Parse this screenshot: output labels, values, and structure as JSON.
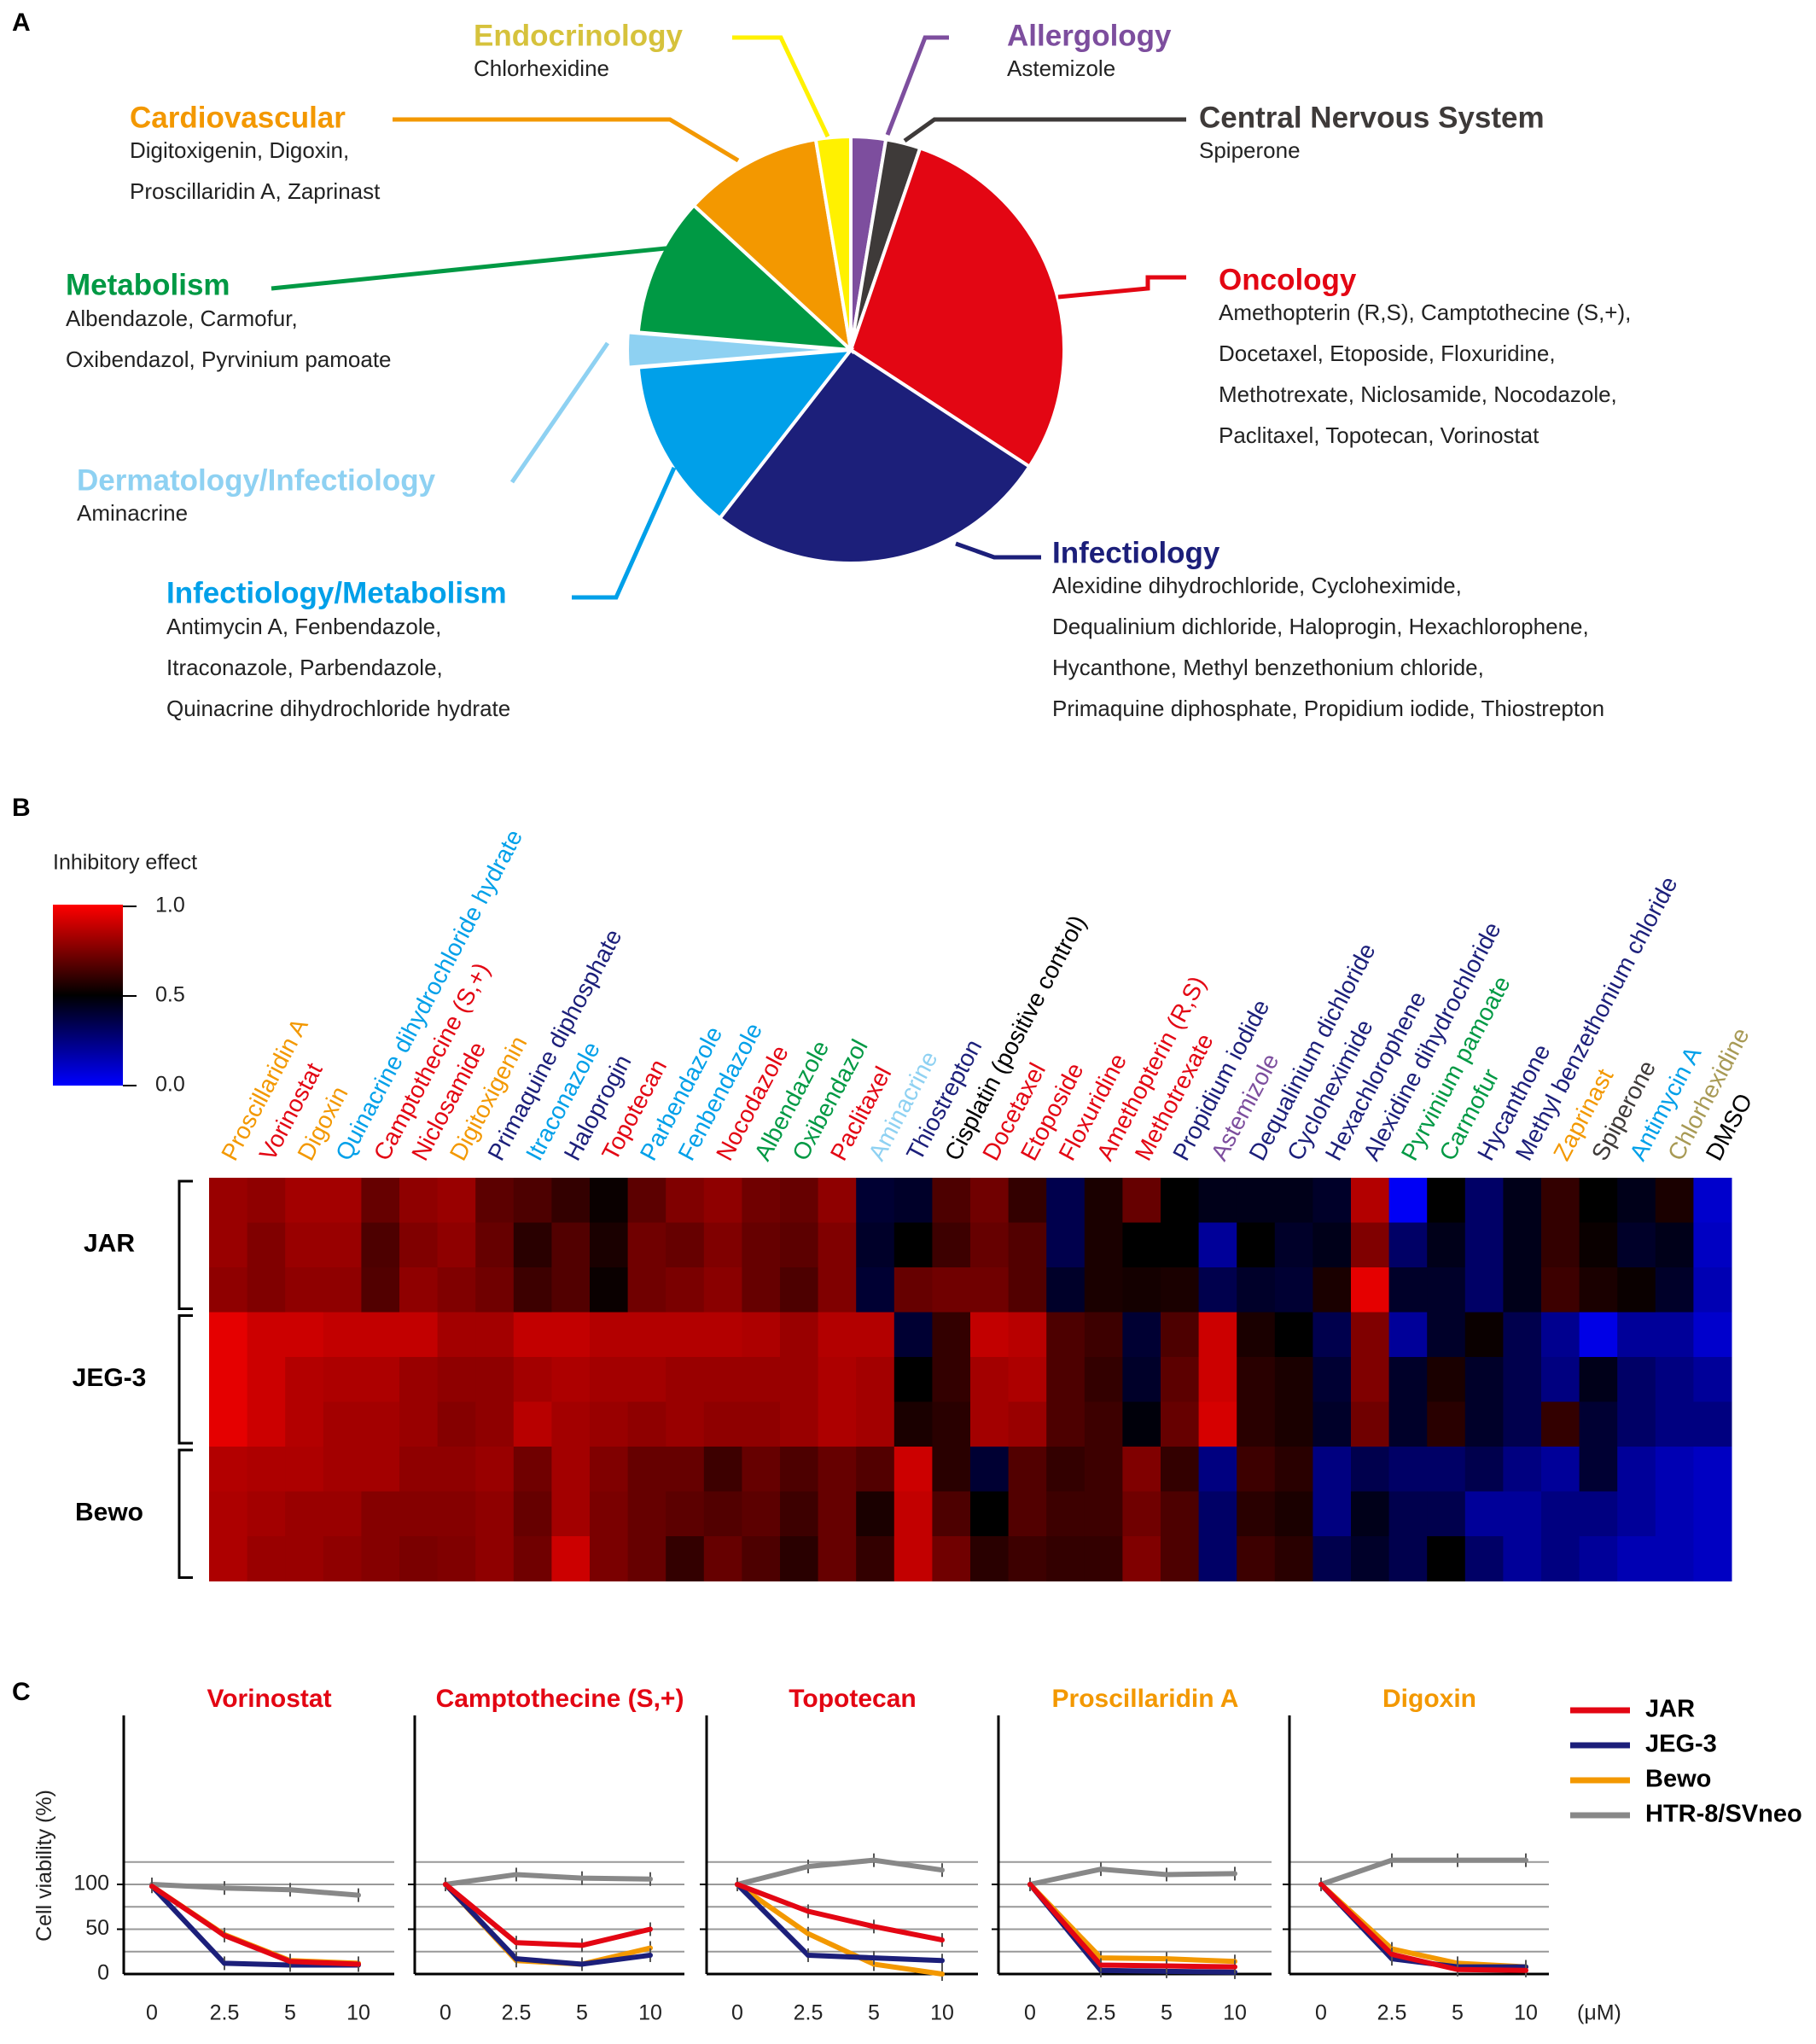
{
  "panel_letters": {
    "a": "A",
    "b": "B",
    "c": "C"
  },
  "colors": {
    "oncology": "#e30613",
    "infectiology": "#1c1f7a",
    "infectiology_metabolism": "#00a0e9",
    "dermatology_infectiology": "#8ed1f2",
    "metabolism": "#009944",
    "cardiovascular": "#f39800",
    "endocrinology": "#fff100",
    "endocrinology_label": "#d6c23c",
    "allergology": "#7d4e9e",
    "cns": "#3e3a39",
    "black": "#000000",
    "chlorhexidine_label": "#a89a55",
    "htr": "#888888"
  },
  "chart_data": [
    {
      "type": "pie",
      "panel": "A",
      "slices": [
        {
          "label": "Allergology",
          "count": 1,
          "color_key": "allergology",
          "drugs": [
            "Astemizole"
          ]
        },
        {
          "label": "Central Nervous System",
          "count": 1,
          "color_key": "cns",
          "drugs": [
            "Spiperone"
          ]
        },
        {
          "label": "Oncology",
          "count": 11,
          "color_key": "oncology",
          "drugs": [
            "Amethopterin (R,S), Camptothecine (S,+),",
            "Docetaxel, Etoposide, Floxuridine,",
            "Methotrexate, Niclosamide, Nocodazole,",
            "Paclitaxel, Topotecan, Vorinostat"
          ]
        },
        {
          "label": "Infectiology",
          "count": 10,
          "color_key": "infectiology",
          "drugs": [
            "Alexidine dihydrochloride, Cycloheximide,",
            "Dequalinium dichloride, Haloprogin, Hexachlorophene,",
            "Hycanthone, Methyl benzethonium chloride,",
            "Primaquine diphosphate, Propidium iodide, Thiostrepton"
          ]
        },
        {
          "label": "Infectiology/Metabolism",
          "count": 5,
          "color_key": "infectiology_metabolism",
          "drugs": [
            "Antimycin A, Fenbendazole,",
            "Itraconazole, Parbendazole,",
            "Quinacrine dihydrochloride hydrate"
          ]
        },
        {
          "label": "Dermatology/Infectiology",
          "count": 1,
          "color_key": "dermatology_infectiology",
          "drugs": [
            "Aminacrine"
          ]
        },
        {
          "label": "Metabolism",
          "count": 4,
          "color_key": "metabolism",
          "drugs": [
            "Albendazole, Carmofur,",
            "Oxibendazol, Pyrvinium pamoate"
          ]
        },
        {
          "label": "Cardiovascular",
          "count": 4,
          "color_key": "cardiovascular",
          "drugs": [
            "Digitoxigenin, Digoxin,",
            "Proscillaridin A, Zaprinast"
          ]
        },
        {
          "label": "Endocrinology",
          "count": 1,
          "color_key": "endocrinology",
          "drugs": [
            "Chlorhexidine"
          ]
        }
      ]
    },
    {
      "type": "heatmap",
      "panel": "B",
      "colorbar": {
        "title": "Inhibitory effect",
        "ticks": [
          "1.0",
          "0.5",
          "0.0"
        ]
      },
      "columns": [
        {
          "name": "Proscillaridin A",
          "c": "cardiovascular"
        },
        {
          "name": "Vorinostat",
          "c": "oncology"
        },
        {
          "name": "Digoxin",
          "c": "cardiovascular"
        },
        {
          "name": "Quinacrine dihydrochloride hydrate",
          "c": "infectiology_metabolism"
        },
        {
          "name": "Camptothecine (S,+)",
          "c": "oncology"
        },
        {
          "name": "Niclosamide",
          "c": "oncology"
        },
        {
          "name": "Digitoxigenin",
          "c": "cardiovascular"
        },
        {
          "name": "Primaquine diphosphate",
          "c": "infectiology"
        },
        {
          "name": "Itraconazole",
          "c": "infectiology_metabolism"
        },
        {
          "name": "Haloprogin",
          "c": "infectiology"
        },
        {
          "name": "Topotecan",
          "c": "oncology"
        },
        {
          "name": "Parbendazole",
          "c": "infectiology_metabolism"
        },
        {
          "name": "Fenbendazole",
          "c": "infectiology_metabolism"
        },
        {
          "name": "Nocodazole",
          "c": "oncology"
        },
        {
          "name": "Albendazole",
          "c": "metabolism"
        },
        {
          "name": "Oxibendazol",
          "c": "metabolism"
        },
        {
          "name": "Paclitaxel",
          "c": "oncology"
        },
        {
          "name": "Aminacrine",
          "c": "dermatology_infectiology"
        },
        {
          "name": "Thiostrepton",
          "c": "infectiology"
        },
        {
          "name": "Cisplatin (positive control)",
          "c": "black"
        },
        {
          "name": "Docetaxel",
          "c": "oncology"
        },
        {
          "name": "Etoposide",
          "c": "oncology"
        },
        {
          "name": "Floxuridine",
          "c": "oncology"
        },
        {
          "name": "Amethopterin (R,S)",
          "c": "oncology"
        },
        {
          "name": "Methotrexate",
          "c": "oncology"
        },
        {
          "name": "Propidium iodide",
          "c": "infectiology"
        },
        {
          "name": "Astemizole",
          "c": "allergology"
        },
        {
          "name": "Dequalinium dichloride",
          "c": "infectiology"
        },
        {
          "name": "Cycloheximide",
          "c": "infectiology"
        },
        {
          "name": "Hexachlorophene",
          "c": "infectiology"
        },
        {
          "name": "Alexidine dihydrochloride",
          "c": "infectiology"
        },
        {
          "name": "Pyrvinium pamoate",
          "c": "metabolism"
        },
        {
          "name": "Carmofur",
          "c": "metabolism"
        },
        {
          "name": "Hycanthone",
          "c": "infectiology"
        },
        {
          "name": "Methyl benzethonium chloride",
          "c": "infectiology"
        },
        {
          "name": "Zaprinast",
          "c": "cardiovascular"
        },
        {
          "name": "Spiperone",
          "c": "cns"
        },
        {
          "name": "Antimycin A",
          "c": "infectiology_metabolism"
        },
        {
          "name": "Chlorhexidine",
          "c": "chlorhexidine_label"
        },
        {
          "name": "DMSO",
          "c": "black"
        }
      ],
      "row_groups": [
        {
          "name": "JAR",
          "rows": [
            [
              0.8,
              0.78,
              0.82,
              0.82,
              0.7,
              0.78,
              0.8,
              0.68,
              0.65,
              0.6,
              0.52,
              0.68,
              0.75,
              0.78,
              0.72,
              0.7,
              0.78,
              0.4,
              0.42,
              0.65,
              0.72,
              0.6,
              0.35,
              0.55,
              0.7,
              0.5,
              0.45,
              0.45,
              0.45,
              0.42,
              0.85,
              0.02,
              0.5,
              0.3,
              0.45,
              0.6,
              0.5,
              0.45,
              0.55,
              0.1
            ],
            [
              0.8,
              0.75,
              0.8,
              0.8,
              0.65,
              0.75,
              0.78,
              0.7,
              0.58,
              0.66,
              0.55,
              0.72,
              0.7,
              0.75,
              0.7,
              0.68,
              0.75,
              0.42,
              0.5,
              0.62,
              0.7,
              0.66,
              0.35,
              0.55,
              0.5,
              0.5,
              0.2,
              0.5,
              0.42,
              0.45,
              0.75,
              0.3,
              0.45,
              0.3,
              0.45,
              0.6,
              0.52,
              0.42,
              0.45,
              0.12
            ],
            [
              0.78,
              0.75,
              0.78,
              0.78,
              0.66,
              0.78,
              0.75,
              0.72,
              0.62,
              0.66,
              0.52,
              0.72,
              0.74,
              0.77,
              0.7,
              0.65,
              0.75,
              0.4,
              0.7,
              0.72,
              0.72,
              0.66,
              0.42,
              0.55,
              0.54,
              0.55,
              0.35,
              0.42,
              0.4,
              0.55,
              0.95,
              0.42,
              0.42,
              0.3,
              0.45,
              0.62,
              0.55,
              0.52,
              0.42,
              0.15
            ]
          ]
        },
        {
          "name": "JEG-3",
          "rows": [
            [
              0.95,
              0.9,
              0.9,
              0.88,
              0.88,
              0.88,
              0.82,
              0.82,
              0.88,
              0.88,
              0.85,
              0.85,
              0.85,
              0.85,
              0.84,
              0.8,
              0.85,
              0.85,
              0.4,
              0.6,
              0.88,
              0.86,
              0.65,
              0.62,
              0.4,
              0.65,
              0.9,
              0.55,
              0.5,
              0.35,
              0.75,
              0.2,
              0.42,
              0.52,
              0.35,
              0.22,
              0.05,
              0.2,
              0.2,
              0.1
            ],
            [
              0.95,
              0.9,
              0.85,
              0.84,
              0.84,
              0.8,
              0.78,
              0.78,
              0.82,
              0.84,
              0.82,
              0.82,
              0.8,
              0.8,
              0.8,
              0.8,
              0.84,
              0.82,
              0.5,
              0.6,
              0.82,
              0.84,
              0.65,
              0.6,
              0.42,
              0.68,
              0.9,
              0.58,
              0.55,
              0.4,
              0.75,
              0.42,
              0.55,
              0.42,
              0.35,
              0.25,
              0.45,
              0.3,
              0.25,
              0.2
            ],
            [
              0.95,
              0.9,
              0.85,
              0.82,
              0.82,
              0.8,
              0.76,
              0.78,
              0.86,
              0.82,
              0.8,
              0.78,
              0.8,
              0.78,
              0.78,
              0.8,
              0.84,
              0.82,
              0.55,
              0.58,
              0.82,
              0.8,
              0.65,
              0.62,
              0.48,
              0.7,
              0.92,
              0.58,
              0.55,
              0.42,
              0.72,
              0.42,
              0.58,
              0.42,
              0.35,
              0.6,
              0.4,
              0.3,
              0.25,
              0.25
            ]
          ]
        },
        {
          "name": "Bewo",
          "rows": [
            [
              0.85,
              0.84,
              0.84,
              0.82,
              0.82,
              0.78,
              0.78,
              0.8,
              0.72,
              0.82,
              0.75,
              0.7,
              0.7,
              0.62,
              0.7,
              0.65,
              0.7,
              0.66,
              0.9,
              0.58,
              0.4,
              0.66,
              0.6,
              0.62,
              0.75,
              0.6,
              0.25,
              0.62,
              0.58,
              0.25,
              0.35,
              0.3,
              0.3,
              0.35,
              0.25,
              0.2,
              0.4,
              0.2,
              0.15,
              0.12
            ],
            [
              0.84,
              0.82,
              0.8,
              0.8,
              0.76,
              0.76,
              0.76,
              0.78,
              0.7,
              0.82,
              0.74,
              0.7,
              0.68,
              0.66,
              0.68,
              0.62,
              0.7,
              0.55,
              0.88,
              0.65,
              0.5,
              0.66,
              0.62,
              0.62,
              0.72,
              0.65,
              0.3,
              0.58,
              0.55,
              0.25,
              0.45,
              0.35,
              0.35,
              0.2,
              0.2,
              0.25,
              0.25,
              0.2,
              0.15,
              0.12
            ],
            [
              0.84,
              0.8,
              0.8,
              0.78,
              0.76,
              0.74,
              0.75,
              0.78,
              0.72,
              0.9,
              0.74,
              0.7,
              0.6,
              0.7,
              0.65,
              0.58,
              0.7,
              0.6,
              0.88,
              0.72,
              0.58,
              0.62,
              0.6,
              0.6,
              0.75,
              0.65,
              0.3,
              0.62,
              0.58,
              0.35,
              0.42,
              0.35,
              0.5,
              0.3,
              0.2,
              0.25,
              0.2,
              0.15,
              0.15,
              0.12
            ]
          ]
        }
      ]
    },
    {
      "type": "line",
      "panel": "C",
      "ylabel": "Cell viability (%)",
      "yticks": [
        "100",
        "50",
        "0"
      ],
      "ylim": [
        0,
        125
      ],
      "xcategories": [
        "0",
        "2.5",
        "5",
        "10"
      ],
      "xunit": "(μM)",
      "legend": [
        {
          "name": "JAR",
          "color": "#e30613"
        },
        {
          "name": "JEG-3",
          "color": "#1c1f7a"
        },
        {
          "name": "Bewo",
          "color": "#f39800"
        },
        {
          "name": "HTR-8/SVneo",
          "color": "#888888"
        }
      ],
      "subplots": [
        {
          "title": "Vorinostat",
          "title_color_key": "oncology",
          "series": {
            "HTR-8/SVneo": [
              100,
              96,
              94,
              88
            ],
            "Bewo": [
              98,
              44,
              15,
              12
            ],
            "JAR": [
              98,
              43,
              14,
              11
            ],
            "JEG-3": [
              98,
              12,
              10,
              10
            ]
          }
        },
        {
          "title": "Camptothecine (S,+)",
          "title_color_key": "oncology",
          "series": {
            "HTR-8/SVneo": [
              100,
              111,
              107,
              106
            ],
            "JAR": [
              100,
              35,
              32,
              50
            ],
            "Bewo": [
              100,
              15,
              11,
              29
            ],
            "JEG-3": [
              100,
              17,
              11,
              21
            ]
          }
        },
        {
          "title": "Topotecan",
          "title_color_key": "oncology",
          "series": {
            "HTR-8/SVneo": [
              100,
              120,
              127,
              116
            ],
            "JAR": [
              100,
              70,
              53,
              38
            ],
            "Bewo": [
              100,
              45,
              11,
              0
            ],
            "JEG-3": [
              100,
              21,
              18,
              15
            ]
          }
        },
        {
          "title": "Proscillaridin A",
          "title_color_key": "cardiovascular",
          "series": {
            "HTR-8/SVneo": [
              100,
              117,
              111,
              112
            ],
            "Bewo": [
              100,
              18,
              17,
              14
            ],
            "JAR": [
              100,
              10,
              9,
              8
            ],
            "JEG-3": [
              100,
              4,
              3,
              2
            ]
          }
        },
        {
          "title": "Digoxin",
          "title_color_key": "cardiovascular",
          "series": {
            "HTR-8/SVneo": [
              100,
              127,
              127,
              127
            ],
            "Bewo": [
              100,
              28,
              12,
              8
            ],
            "JAR": [
              100,
              22,
              5,
              4
            ],
            "JEG-3": [
              100,
              17,
              8,
              8
            ]
          }
        }
      ]
    }
  ]
}
